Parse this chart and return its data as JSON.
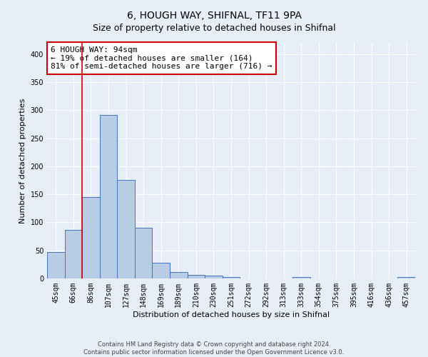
{
  "title": "6, HOUGH WAY, SHIFNAL, TF11 9PA",
  "subtitle": "Size of property relative to detached houses in Shifnal",
  "xlabel": "Distribution of detached houses by size in Shifnal",
  "ylabel": "Number of detached properties",
  "categories": [
    "45sqm",
    "66sqm",
    "86sqm",
    "107sqm",
    "127sqm",
    "148sqm",
    "169sqm",
    "189sqm",
    "210sqm",
    "230sqm",
    "251sqm",
    "272sqm",
    "292sqm",
    "313sqm",
    "333sqm",
    "354sqm",
    "375sqm",
    "395sqm",
    "416sqm",
    "436sqm",
    "457sqm"
  ],
  "values": [
    47,
    87,
    145,
    292,
    175,
    90,
    28,
    12,
    6,
    5,
    2,
    0,
    0,
    0,
    3,
    0,
    0,
    0,
    0,
    0,
    2
  ],
  "bar_color": "#b8cce4",
  "bar_edge_color": "#4472c4",
  "ylim": [
    0,
    420
  ],
  "yticks": [
    0,
    50,
    100,
    150,
    200,
    250,
    300,
    350,
    400
  ],
  "vline_x": 2.0,
  "vline_color": "#cc0000",
  "annotation_text": "6 HOUGH WAY: 94sqm\n← 19% of detached houses are smaller (164)\n81% of semi-detached houses are larger (716) →",
  "annotation_box_color": "#ffffff",
  "annotation_box_edge_color": "#cc0000",
  "footer_text": "Contains HM Land Registry data © Crown copyright and database right 2024.\nContains public sector information licensed under the Open Government Licence v3.0.",
  "bg_color": "#e8eef8",
  "grid_color": "#ffffff",
  "title_fontsize": 10,
  "subtitle_fontsize": 9,
  "label_fontsize": 8,
  "tick_fontsize": 7,
  "annotation_fontsize": 8,
  "footer_fontsize": 6
}
